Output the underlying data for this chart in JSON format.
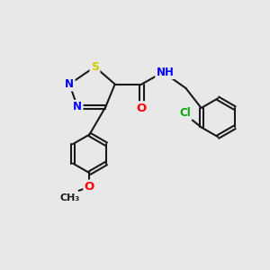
{
  "background_color": "#e8e8e8",
  "bond_color": "#1a1a1a",
  "bond_width": 1.5,
  "colors": {
    "N": "#0000ff",
    "S": "#cccc00",
    "O": "#ff0000",
    "Cl": "#00aa00",
    "C": "#1a1a1a"
  },
  "font_size": 8.5
}
